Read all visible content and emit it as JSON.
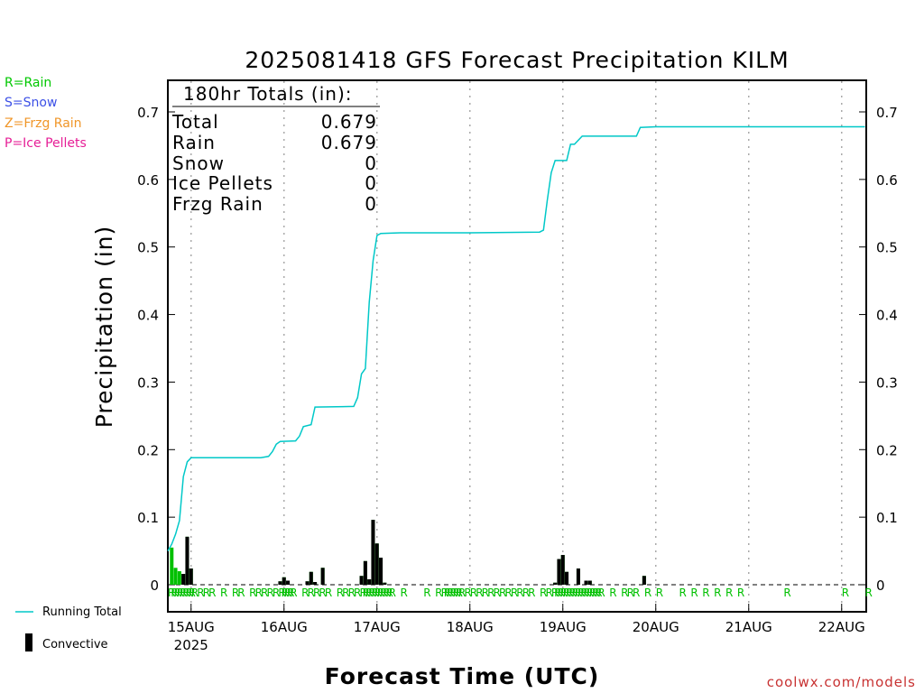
{
  "chart_data": {
    "type": "bar",
    "title": "2025081418 GFS Forecast Precipitation KILM",
    "xlabel": "Forecast Time (UTC)",
    "ylabel": "Precipitation (in)",
    "ylim": [
      0,
      0.75
    ],
    "yticks": [
      0,
      0.1,
      0.2,
      0.3,
      0.4,
      0.5,
      0.6,
      0.7
    ],
    "ytick_labels": [
      "0",
      "0.1",
      "0.2",
      "0.3",
      "0.4",
      "0.5",
      "0.6",
      "0.7"
    ],
    "xlim_hours": [
      0,
      180
    ],
    "xticks": [
      {
        "hour": 6,
        "label": "15AUG",
        "sublabel": "2025"
      },
      {
        "hour": 30,
        "label": "16AUG"
      },
      {
        "hour": 54,
        "label": "17AUG"
      },
      {
        "hour": 78,
        "label": "18AUG"
      },
      {
        "hour": 102,
        "label": "19AUG"
      },
      {
        "hour": 126,
        "label": "20AUG"
      },
      {
        "hour": 150,
        "label": "21AUG"
      },
      {
        "hour": 174,
        "label": "22AUG"
      }
    ],
    "grid": "vertical dotted at day boundaries",
    "legend_position": "bottom-left",
    "series": [
      {
        "name": "Running Total",
        "kind": "line",
        "color": "#00c8c8",
        "points": [
          [
            0,
            0.05
          ],
          [
            1,
            0.06
          ],
          [
            2,
            0.075
          ],
          [
            3,
            0.095
          ],
          [
            4,
            0.16
          ],
          [
            5,
            0.182
          ],
          [
            6,
            0.188
          ],
          [
            12,
            0.188
          ],
          [
            24,
            0.188
          ],
          [
            26,
            0.19
          ],
          [
            27,
            0.197
          ],
          [
            28,
            0.208
          ],
          [
            29,
            0.212
          ],
          [
            33,
            0.213
          ],
          [
            34,
            0.22
          ],
          [
            35,
            0.234
          ],
          [
            37,
            0.237
          ],
          [
            38,
            0.263
          ],
          [
            48,
            0.264
          ],
          [
            49,
            0.277
          ],
          [
            50,
            0.312
          ],
          [
            51,
            0.32
          ],
          [
            52,
            0.418
          ],
          [
            53,
            0.48
          ],
          [
            54,
            0.517
          ],
          [
            55,
            0.52
          ],
          [
            60,
            0.521
          ],
          [
            78,
            0.521
          ],
          [
            96,
            0.522
          ],
          [
            97,
            0.525
          ],
          [
            98,
            0.57
          ],
          [
            99,
            0.61
          ],
          [
            100,
            0.628
          ],
          [
            103,
            0.628
          ],
          [
            104,
            0.652
          ],
          [
            105,
            0.652
          ],
          [
            107,
            0.664
          ],
          [
            121,
            0.664
          ],
          [
            122,
            0.677
          ],
          [
            126,
            0.678
          ],
          [
            180,
            0.678
          ]
        ]
      },
      {
        "name": "Convective",
        "kind": "bar",
        "color": "#000000",
        "bars": [
          {
            "hour": 1,
            "total": 0.055,
            "convective": 0.0
          },
          {
            "hour": 2,
            "total": 0.025,
            "convective": 0.0
          },
          {
            "hour": 3,
            "total": 0.02,
            "convective": 0.0
          },
          {
            "hour": 4,
            "total": 0.016,
            "convective": 0.016
          },
          {
            "hour": 5,
            "total": 0.071,
            "convective": 0.071
          },
          {
            "hour": 6,
            "total": 0.024,
            "convective": 0.024
          },
          {
            "hour": 29,
            "total": 0.005,
            "convective": 0.005
          },
          {
            "hour": 30,
            "total": 0.011,
            "convective": 0.011
          },
          {
            "hour": 31,
            "total": 0.006,
            "convective": 0.006
          },
          {
            "hour": 36,
            "total": 0.005,
            "convective": 0.005
          },
          {
            "hour": 37,
            "total": 0.019,
            "convective": 0.019
          },
          {
            "hour": 38,
            "total": 0.004,
            "convective": 0.004
          },
          {
            "hour": 40,
            "total": 0.025,
            "convective": 0.025
          },
          {
            "hour": 50,
            "total": 0.013,
            "convective": 0.013
          },
          {
            "hour": 51,
            "total": 0.035,
            "convective": 0.035
          },
          {
            "hour": 52,
            "total": 0.008,
            "convective": 0.008
          },
          {
            "hour": 53,
            "total": 0.096,
            "convective": 0.096
          },
          {
            "hour": 54,
            "total": 0.061,
            "convective": 0.061
          },
          {
            "hour": 55,
            "total": 0.04,
            "convective": 0.04
          },
          {
            "hour": 56,
            "total": 0.003,
            "convective": 0.003
          },
          {
            "hour": 100,
            "total": 0.003,
            "convective": 0.003
          },
          {
            "hour": 101,
            "total": 0.038,
            "convective": 0.038
          },
          {
            "hour": 102,
            "total": 0.044,
            "convective": 0.044
          },
          {
            "hour": 103,
            "total": 0.019,
            "convective": 0.019
          },
          {
            "hour": 106,
            "total": 0.024,
            "convective": 0.024
          },
          {
            "hour": 108,
            "total": 0.006,
            "convective": 0.006
          },
          {
            "hour": 109,
            "total": 0.006,
            "convective": 0.006
          },
          {
            "hour": 123,
            "total": 0.013,
            "convective": 0.013
          }
        ]
      }
    ],
    "precip_type_markers": {
      "label": "R",
      "color": "#00c000",
      "hours": [
        0,
        0.75,
        1.5,
        2.25,
        3,
        3.75,
        4.5,
        5.25,
        6,
        7.5,
        9,
        10.5,
        13.5,
        16.5,
        18,
        21,
        22.5,
        24,
        25.5,
        27,
        28.5,
        29.25,
        30,
        30.75,
        31.5,
        34.5,
        36,
        37.5,
        39,
        40.5,
        43.5,
        45,
        46.5,
        48,
        49.5,
        50.25,
        51,
        51.75,
        52.5,
        53.25,
        54,
        54.75,
        55.5,
        56.25,
        57,
        60,
        66,
        69,
        70.5,
        71.25,
        72,
        72.75,
        73.5,
        74.25,
        75,
        76.5,
        78,
        79.5,
        81,
        82.5,
        84,
        85.5,
        87,
        88.5,
        90,
        91.5,
        93,
        96,
        97.5,
        99,
        99.75,
        100.5,
        101.25,
        102,
        102.75,
        103.5,
        104.25,
        105,
        105.75,
        106.5,
        107.25,
        108,
        108.75,
        109.5,
        110.25,
        111,
        114,
        117,
        118.5,
        120,
        123,
        126,
        132,
        135,
        138,
        141,
        144,
        147,
        159,
        174,
        180
      ]
    },
    "totals_box": {
      "header": "180hr Totals (in):",
      "rows": [
        {
          "label": "Total",
          "value": "0.679"
        },
        {
          "label": "Rain",
          "value": "0.679"
        },
        {
          "label": "Snow",
          "value": "0"
        },
        {
          "label": "Ice Pellets",
          "value": "0"
        },
        {
          "label": "Frzg Rain",
          "value": "0"
        }
      ]
    }
  },
  "precip_legend": [
    {
      "text": "R=Rain",
      "color": "#00c800"
    },
    {
      "text": "S=Snow",
      "color": "#3c50e6"
    },
    {
      "text": "Z=Frzg Rain",
      "color": "#f09628"
    },
    {
      "text": "P=Ice Pellets",
      "color": "#e61e96"
    }
  ],
  "series_legend": {
    "running_total": "Running Total",
    "convective": "Convective"
  },
  "credit": "coolwx.com/models",
  "colors": {
    "running_total": "#00c8c8",
    "rain_bar": "#00c000",
    "convective_bar": "#000000",
    "credit": "#c83232"
  }
}
